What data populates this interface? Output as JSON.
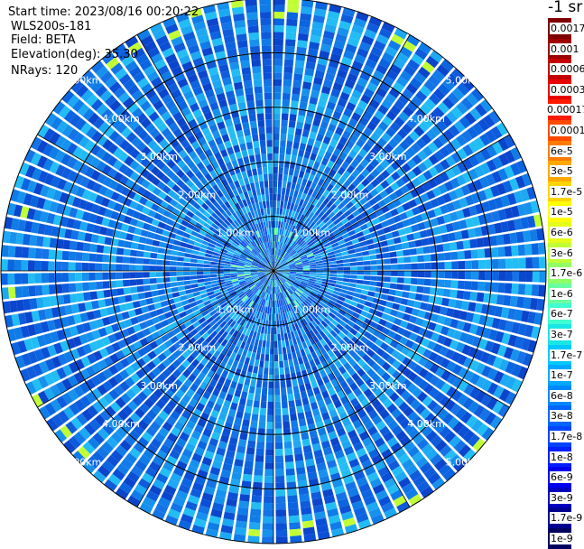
{
  "info": {
    "start_time": "Start time: 2023/08/16 00:20:22",
    "device": "WLS200s-181",
    "field": "Field: BETA",
    "elevation": "Elevation(deg): 35.30",
    "nrays": "NRays: 120"
  },
  "colorbar": {
    "unit": "-1 sr",
    "labels": [
      "0.0017",
      "0.001",
      "0.0006",
      "0.0003",
      "0.00017",
      "0.0001",
      "6e-5",
      "3e-5",
      "1.7e-5",
      "1e-5",
      "6e-6",
      "3e-6",
      "1.7e-6",
      "1e-6",
      "6e-7",
      "3e-7",
      "1.7e-7",
      "1e-7",
      "6e-8",
      "3e-8",
      "1.7e-8",
      "1e-8",
      "6e-9",
      "3e-9",
      "1.7e-9",
      "1e-9"
    ],
    "colors": [
      "#7f0000",
      "#9c0000",
      "#c40000",
      "#e60000",
      "#ff1a00",
      "#ff4a00",
      "#ff7a00",
      "#ffa800",
      "#ffd400",
      "#ffff00",
      "#e5ff1a",
      "#c0ff36",
      "#90ff66",
      "#6affa0",
      "#40ffd0",
      "#1ae6e6",
      "#00c8ff",
      "#00a8ff",
      "#0088ff",
      "#0066ff",
      "#0044ff",
      "#0020ff",
      "#0000f0",
      "#0000c0",
      "#000090",
      "#000060"
    ]
  },
  "chart_data": {
    "type": "heatmap",
    "projection": "polar PPI scan",
    "field": "BETA",
    "rays": 120,
    "max_range_km": 5.0,
    "range_rings_km": [
      1.0,
      2.0,
      3.0,
      4.0,
      5.0
    ],
    "ring_labels": [
      "1.00km",
      "2.00km",
      "3.00km",
      "4.00km",
      "5.00km"
    ],
    "dominant_value_range": [
      1e-08,
      1e-07
    ],
    "color_scale": "log"
  }
}
